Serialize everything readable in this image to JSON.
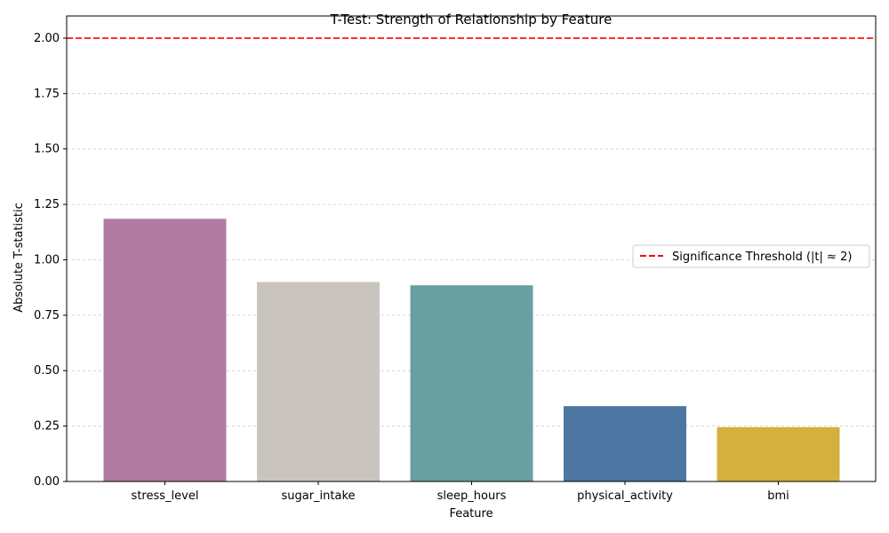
{
  "chart_data": {
    "type": "bar",
    "title": "T-Test: Strength of Relationship by Feature",
    "xlabel": "Feature",
    "ylabel": "Absolute T-statistic",
    "categories": [
      "stress_level",
      "sugar_intake",
      "sleep_hours",
      "physical_activity",
      "bmi"
    ],
    "values": [
      1.185,
      0.9,
      0.885,
      0.34,
      0.245
    ],
    "colors": [
      "#b07ba0",
      "#cac4bf",
      "#6a9fa1",
      "#4e76a3",
      "#d4b03c"
    ],
    "ylim": [
      0,
      2.1
    ],
    "yticks": [
      "0.00",
      "0.25",
      "0.50",
      "0.75",
      "1.00",
      "1.25",
      "1.50",
      "1.75",
      "2.00"
    ],
    "grid": "y, dashed",
    "threshold": {
      "value": 2.0,
      "label": "Significance Threshold (|t| ≈ 2)",
      "color": "#ff0000",
      "style": "dashed"
    },
    "legend_position": "center-right"
  }
}
